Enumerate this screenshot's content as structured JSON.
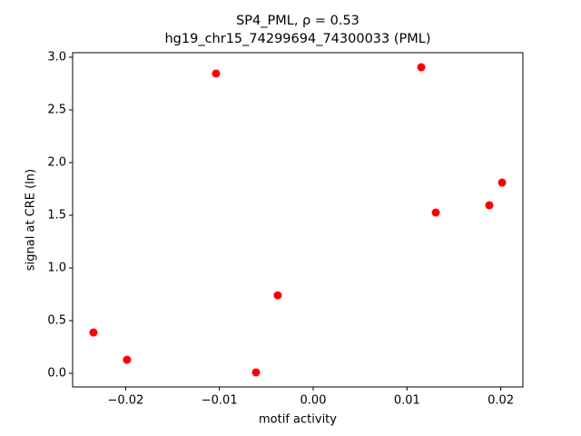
{
  "chart_data": {
    "type": "scatter",
    "title": "SP4_PML, ρ = 0.53",
    "subtitle": "hg19_chr15_74299694_74300033 (PML)",
    "x_label": "motif activity",
    "y_label": "signal at CRE (ln)",
    "color": "#ff0000",
    "x": [
      -0.02343,
      -0.01985,
      -0.01036,
      -0.0061,
      -0.00378,
      0.01152,
      0.01307,
      0.01878,
      0.02014
    ],
    "values": [
      0.388,
      0.129,
      2.845,
      0.009,
      0.741,
      2.905,
      1.526,
      1.595,
      1.81
    ],
    "xlim": [
      -0.02565,
      0.02236
    ],
    "ylim": [
      -0.129,
      3.043
    ],
    "xticks": [
      {
        "value": -0.02,
        "label": "−0.02"
      },
      {
        "value": -0.01,
        "label": "−0.01"
      },
      {
        "value": 0,
        "label": "0.00"
      },
      0.01,
      0.02
    ],
    "yticks": [
      {
        "value": 0,
        "label": "0.0"
      },
      0.5,
      {
        "value": 1,
        "label": "1.0"
      },
      1.5,
      {
        "value": 2,
        "label": "2.0"
      },
      2.5,
      {
        "value": 3,
        "label": "3.0"
      }
    ]
  }
}
